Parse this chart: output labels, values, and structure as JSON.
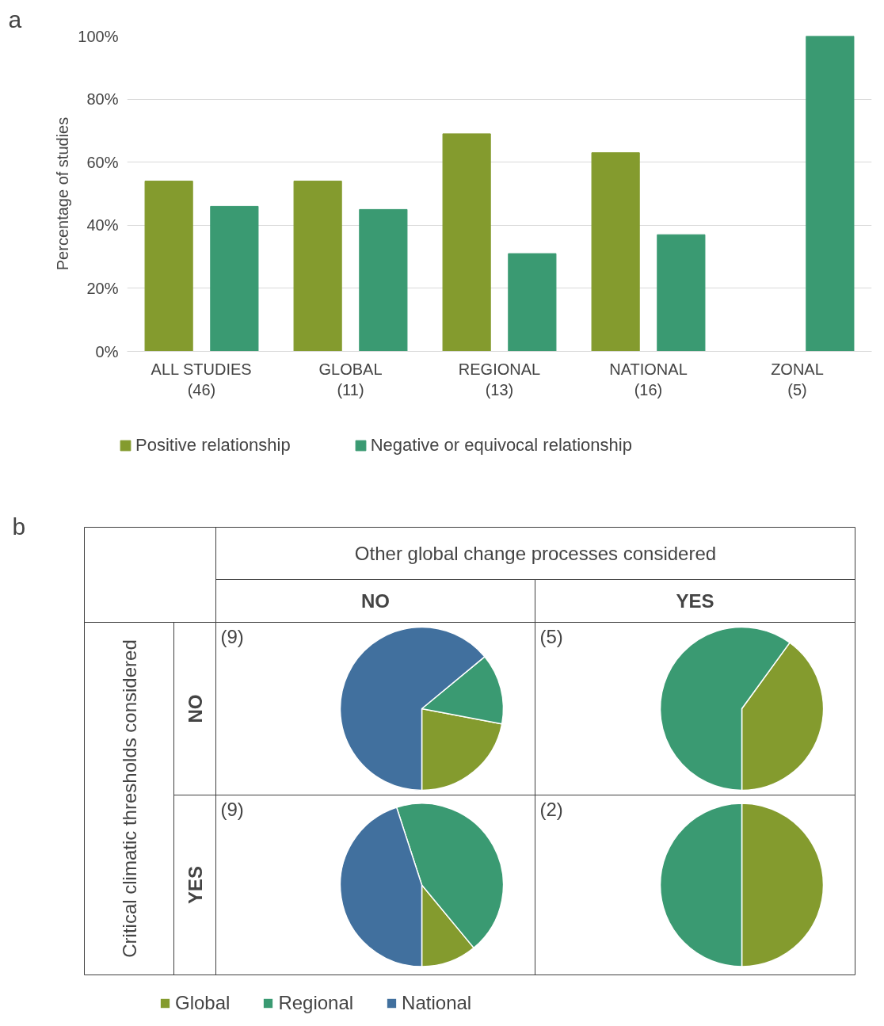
{
  "chart_data": [
    {
      "type": "bar",
      "title": "a",
      "ylabel": "Percentage of studies",
      "categories": [
        "ALL STUDIES\n(46)",
        "GLOBAL\n(11)",
        "REGIONAL\n(13)",
        "NATIONAL\n(16)",
        "ZONAL\n(5)"
      ],
      "series": [
        {
          "name": "Positive relationship",
          "color": "#849b2e",
          "values": [
            54,
            54,
            69,
            63,
            0
          ]
        },
        {
          "name": "Negative or equivocal relationship",
          "color": "#3a9a72",
          "values": [
            46,
            45,
            31,
            37,
            100
          ]
        }
      ],
      "ylim": [
        0,
        100
      ],
      "yticks": [
        {
          "value": 0,
          "label": "0%"
        },
        {
          "value": 20,
          "label": "20%"
        },
        {
          "value": 40,
          "label": "40%"
        },
        {
          "value": 60,
          "label": "60%"
        },
        {
          "value": 80,
          "label": "80%"
        },
        {
          "value": 100,
          "label": "100%"
        }
      ],
      "grid": "y",
      "legend": "bottom"
    },
    {
      "type": "other",
      "title": "b",
      "annotations": [
        "Other global change processes considered",
        "NO",
        "YES",
        "Critical climatic thresholds considered",
        "NO",
        "YES"
      ]
    },
    {
      "type": "pie",
      "title": "(9)",
      "categories": [
        "Global",
        "Regional",
        "National"
      ],
      "values": [
        22,
        14,
        64
      ],
      "colors": [
        "#849b2e",
        "#3a9a72",
        "#41709e"
      ],
      "legend": "bottom"
    },
    {
      "type": "pie",
      "title": "(5)",
      "categories": [
        null,
        null
      ],
      "values": [
        40,
        60
      ],
      "colors": [
        "#849b2e",
        "#3a9a72"
      ]
    },
    {
      "type": "pie",
      "title": "(9)",
      "categories": [
        null,
        null,
        null
      ],
      "values": [
        11,
        44,
        45
      ],
      "colors": [
        "#849b2e",
        "#3a9a72",
        "#41709e"
      ]
    },
    {
      "type": "pie",
      "title": "(2)",
      "categories": [
        null,
        null
      ],
      "values": [
        50,
        50
      ],
      "colors": [
        "#849b2e",
        "#3a9a72"
      ]
    }
  ]
}
